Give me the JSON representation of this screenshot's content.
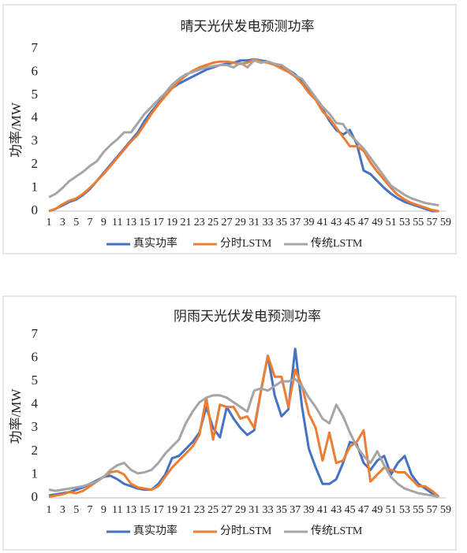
{
  "chart_data": [
    {
      "type": "line",
      "title": "晴天光伏发电预测功率",
      "y_label": "功率/MW",
      "x": [
        1,
        2,
        3,
        4,
        5,
        6,
        7,
        8,
        9,
        10,
        11,
        12,
        13,
        14,
        15,
        16,
        17,
        18,
        19,
        20,
        21,
        22,
        23,
        24,
        25,
        26,
        27,
        28,
        29,
        30,
        31,
        32,
        33,
        34,
        35,
        36,
        37,
        38,
        39,
        40,
        41,
        42,
        43,
        44,
        45,
        46,
        47,
        48,
        49,
        50,
        51,
        52,
        53,
        54,
        55,
        56,
        57,
        58
      ],
      "xlim": [
        1,
        59
      ],
      "xticks": [
        1,
        3,
        5,
        7,
        9,
        11,
        13,
        15,
        17,
        19,
        21,
        23,
        25,
        27,
        29,
        31,
        33,
        35,
        37,
        39,
        41,
        43,
        45,
        47,
        49,
        51,
        53,
        55,
        57,
        59
      ],
      "ylim": [
        0,
        7
      ],
      "yticks": [
        0,
        1,
        2,
        3,
        4,
        5,
        6,
        7
      ],
      "grid": false,
      "legend": "bottom",
      "series": [
        {
          "name": "真实功率",
          "color": "#4472c4",
          "values": [
            0.0,
            0.1,
            0.25,
            0.4,
            0.5,
            0.7,
            0.95,
            1.3,
            1.65,
            2.0,
            2.35,
            2.7,
            3.05,
            3.4,
            3.9,
            4.3,
            4.65,
            5.0,
            5.3,
            5.5,
            5.65,
            5.8,
            5.95,
            6.1,
            6.2,
            6.3,
            6.35,
            6.4,
            6.5,
            6.5,
            6.55,
            6.5,
            6.45,
            6.35,
            6.2,
            6.1,
            5.9,
            5.6,
            5.25,
            4.9,
            4.4,
            3.9,
            3.5,
            3.3,
            3.5,
            2.9,
            1.75,
            1.6,
            1.3,
            1.0,
            0.75,
            0.55,
            0.4,
            0.3,
            0.2,
            0.1,
            0.0,
            0.0
          ]
        },
        {
          "name": "分时LSTM",
          "color": "#ed7d31",
          "values": [
            0.0,
            0.1,
            0.3,
            0.45,
            0.55,
            0.75,
            1.0,
            1.3,
            1.6,
            1.95,
            2.3,
            2.65,
            3.0,
            3.3,
            3.75,
            4.2,
            4.6,
            4.95,
            5.3,
            5.6,
            5.85,
            6.05,
            6.2,
            6.3,
            6.4,
            6.45,
            6.45,
            6.4,
            6.35,
            6.4,
            6.55,
            6.45,
            6.4,
            6.3,
            6.15,
            6.0,
            5.8,
            5.5,
            5.1,
            4.8,
            4.3,
            4.0,
            3.6,
            3.2,
            2.8,
            2.8,
            2.6,
            2.1,
            1.7,
            1.35,
            1.0,
            0.7,
            0.5,
            0.35,
            0.25,
            0.15,
            0.05,
            0.0
          ]
        },
        {
          "name": "传统LSTM",
          "color": "#a5a5a5",
          "values": [
            0.6,
            0.75,
            1.0,
            1.3,
            1.5,
            1.7,
            1.95,
            2.15,
            2.55,
            2.85,
            3.1,
            3.4,
            3.4,
            3.8,
            4.2,
            4.5,
            4.8,
            5.1,
            5.45,
            5.7,
            5.9,
            6.0,
            6.1,
            6.2,
            6.25,
            6.3,
            6.3,
            6.2,
            6.4,
            6.2,
            6.5,
            6.4,
            6.45,
            6.35,
            6.3,
            6.1,
            5.85,
            5.7,
            5.3,
            4.9,
            4.5,
            4.2,
            3.8,
            3.75,
            3.3,
            3.0,
            2.7,
            2.3,
            1.9,
            1.5,
            1.1,
            0.9,
            0.7,
            0.55,
            0.45,
            0.35,
            0.3,
            0.25
          ]
        }
      ]
    },
    {
      "type": "line",
      "title": "阴雨天光伏发电预测功率",
      "y_label": "功率/MW",
      "x": [
        1,
        2,
        3,
        4,
        5,
        6,
        7,
        8,
        9,
        10,
        11,
        12,
        13,
        14,
        15,
        16,
        17,
        18,
        19,
        20,
        21,
        22,
        23,
        24,
        25,
        26,
        27,
        28,
        29,
        30,
        31,
        32,
        33,
        34,
        35,
        36,
        37,
        38,
        39,
        40,
        41,
        42,
        43,
        44,
        45,
        46,
        47,
        48,
        49,
        50,
        51,
        52,
        53,
        54,
        55,
        56,
        57,
        58
      ],
      "xlim": [
        1,
        59
      ],
      "xticks": [
        1,
        3,
        5,
        7,
        9,
        11,
        13,
        15,
        17,
        19,
        21,
        23,
        25,
        27,
        29,
        31,
        33,
        35,
        37,
        39,
        41,
        43,
        45,
        47,
        49,
        51,
        53,
        55,
        57,
        59
      ],
      "ylim": [
        0,
        7
      ],
      "yticks": [
        0,
        1,
        2,
        3,
        4,
        5,
        6,
        7
      ],
      "grid": false,
      "legend": "bottom",
      "series": [
        {
          "name": "真实功率",
          "color": "#4472c4",
          "values": [
            0.1,
            0.15,
            0.2,
            0.25,
            0.35,
            0.45,
            0.6,
            0.75,
            0.9,
            0.95,
            0.8,
            0.6,
            0.5,
            0.4,
            0.35,
            0.35,
            0.6,
            1.0,
            1.7,
            1.8,
            2.1,
            2.4,
            2.8,
            3.9,
            3.0,
            2.6,
            3.9,
            3.4,
            3.0,
            2.7,
            2.9,
            4.6,
            6.1,
            4.4,
            3.5,
            3.8,
            6.4,
            3.9,
            2.1,
            1.3,
            0.6,
            0.6,
            0.8,
            1.5,
            2.4,
            2.3,
            1.5,
            1.2,
            1.6,
            1.8,
            1.0,
            1.5,
            1.8,
            1.0,
            0.6,
            0.4,
            0.2,
            0.05
          ]
        },
        {
          "name": "分时LSTM",
          "color": "#ed7d31",
          "values": [
            0.05,
            0.1,
            0.15,
            0.25,
            0.2,
            0.3,
            0.5,
            0.7,
            0.9,
            1.1,
            1.15,
            1.0,
            0.6,
            0.45,
            0.4,
            0.35,
            0.5,
            0.9,
            1.3,
            1.6,
            1.9,
            2.2,
            2.7,
            4.3,
            2.5,
            4.0,
            3.9,
            3.9,
            3.4,
            3.5,
            3.0,
            4.6,
            6.1,
            5.2,
            5.2,
            3.9,
            5.5,
            4.8,
            3.6,
            3.0,
            1.6,
            2.8,
            1.5,
            1.6,
            2.2,
            2.4,
            2.9,
            0.7,
            1.0,
            1.3,
            1.2,
            1.1,
            1.1,
            0.8,
            0.5,
            0.5,
            0.3,
            0.05
          ]
        },
        {
          "name": "传统LSTM",
          "color": "#a5a5a5",
          "values": [
            0.35,
            0.3,
            0.35,
            0.4,
            0.45,
            0.5,
            0.6,
            0.7,
            0.9,
            1.2,
            1.4,
            1.5,
            1.2,
            1.05,
            1.1,
            1.2,
            1.5,
            1.9,
            2.2,
            2.5,
            3.2,
            3.7,
            4.1,
            4.3,
            4.4,
            4.4,
            4.3,
            4.1,
            3.9,
            3.7,
            4.6,
            4.7,
            4.6,
            4.8,
            5.0,
            5.0,
            5.1,
            4.8,
            4.3,
            3.9,
            3.4,
            3.2,
            4.0,
            3.5,
            2.8,
            2.2,
            1.8,
            1.5,
            2.0,
            1.4,
            0.9,
            0.6,
            0.4,
            0.3,
            0.2,
            0.15,
            0.1,
            0.05
          ]
        }
      ]
    }
  ]
}
